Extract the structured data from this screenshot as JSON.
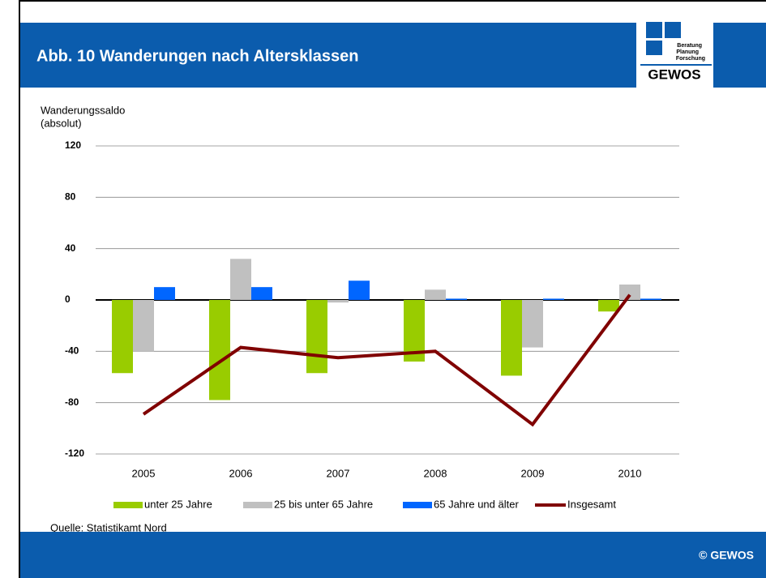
{
  "header": {
    "title": "Abb. 10 Wanderungen nach Altersklassen",
    "logo_lines": [
      "Beratung",
      "Planung",
      "Forschung"
    ],
    "logo_name": "GEWOS"
  },
  "source": "Quelle: Statistikamt Nord",
  "footer": "© GEWOS",
  "chart_data": {
    "type": "bar_line",
    "ylabel": [
      "Wanderungssaldo",
      "(absolut)"
    ],
    "categories": [
      "2005",
      "2006",
      "2007",
      "2008",
      "2009",
      "2010"
    ],
    "series": [
      {
        "name": "unter 25 Jahre",
        "color": "#99cc00",
        "kind": "bar",
        "values": [
          -57,
          -78,
          -57,
          -48,
          -59,
          -9
        ]
      },
      {
        "name": "25 bis unter 65 Jahre",
        "color": "#c0c0c0",
        "kind": "bar",
        "values": [
          -40,
          32,
          -2,
          8,
          -37,
          12
        ]
      },
      {
        "name": "65 Jahre und älter",
        "color": "#0066ff",
        "kind": "bar",
        "values": [
          10,
          10,
          15,
          1,
          1,
          1
        ]
      },
      {
        "name": "Insgesamt",
        "color": "#800000",
        "kind": "line",
        "values": [
          -89,
          -37,
          -45,
          -40,
          -97,
          4
        ]
      }
    ],
    "ylim": [
      -120,
      120
    ],
    "yticks": [
      -120,
      -80,
      -40,
      0,
      40,
      80,
      120
    ],
    "grid": true
  }
}
